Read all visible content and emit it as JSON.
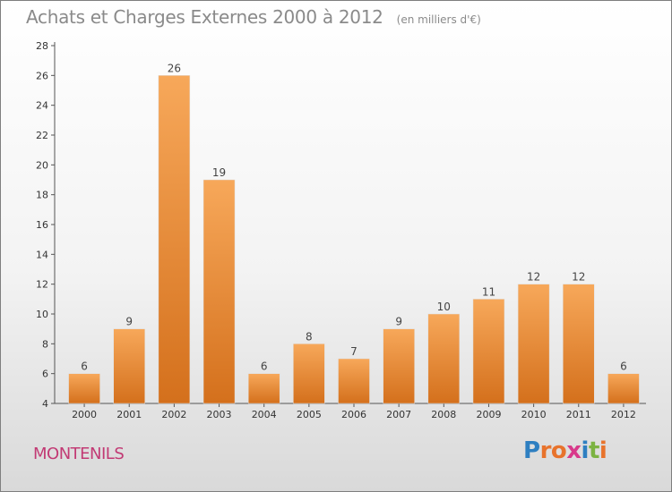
{
  "header": {
    "title": "Achats et Charges Externes 2000 à 2012",
    "subtitle": "(en milliers d'€)"
  },
  "footer": {
    "commune": "MONTENILS",
    "logo_text": "Proxiti",
    "logo_letters": [
      {
        "ch": "P",
        "color": "#2e7fc1"
      },
      {
        "ch": "r",
        "color": "#e8732c"
      },
      {
        "ch": "o",
        "color": "#e8732c"
      },
      {
        "ch": "x",
        "color": "#d83a8b"
      },
      {
        "ch": "i",
        "color": "#2e7fc1"
      },
      {
        "ch": "t",
        "color": "#7cb342"
      },
      {
        "ch": "i",
        "color": "#e8732c"
      }
    ]
  },
  "chart_data": {
    "type": "bar",
    "title": "Achats et Charges Externes 2000 à 2012",
    "subtitle": "(en milliers d'€)",
    "categories": [
      "2000",
      "2001",
      "2002",
      "2003",
      "2004",
      "2005",
      "2006",
      "2007",
      "2008",
      "2009",
      "2010",
      "2011",
      "2012"
    ],
    "values": [
      6,
      9,
      26,
      19,
      6,
      8,
      7,
      9,
      10,
      11,
      12,
      12,
      6
    ],
    "ylim": [
      4,
      28
    ],
    "yticks": [
      4,
      6,
      8,
      10,
      12,
      14,
      16,
      18,
      20,
      22,
      24,
      26,
      28
    ],
    "grid": false,
    "bar_color_light": "#f7a85a",
    "bar_color_dark": "#d4701c",
    "axis_color": "#555555"
  }
}
